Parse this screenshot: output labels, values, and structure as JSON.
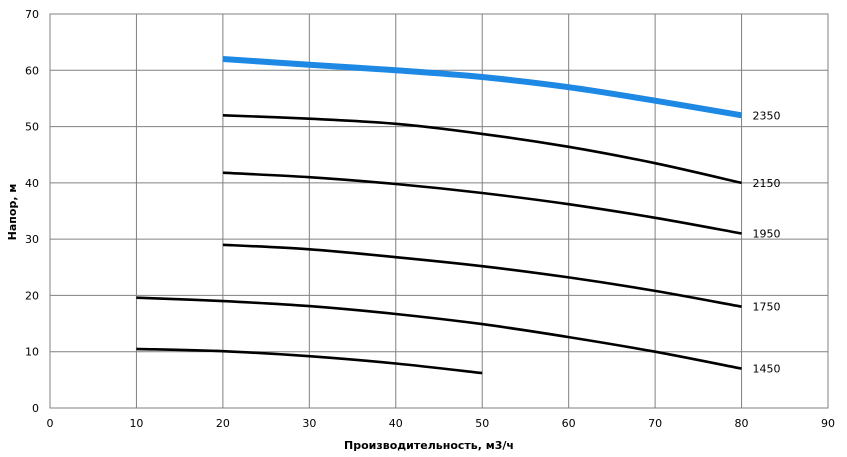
{
  "chart_data": {
    "type": "line",
    "title": "",
    "xlabel": "Производительность,  м3/ч",
    "ylabel": "Напор, м",
    "xlim": [
      0,
      90
    ],
    "ylim": [
      0,
      70
    ],
    "xticks": [
      0,
      10,
      20,
      30,
      40,
      50,
      60,
      70,
      80,
      90
    ],
    "yticks": [
      0,
      10,
      20,
      30,
      40,
      50,
      60,
      70
    ],
    "grid": true,
    "legend": "none",
    "series": [
      {
        "name": "2350",
        "color": "#1e88e5",
        "x": [
          20,
          30,
          40,
          50,
          60,
          70,
          80
        ],
        "y": [
          62,
          61,
          60,
          58.8,
          57,
          54.6,
          52
        ]
      },
      {
        "name": "2150",
        "color": "#000000",
        "x": [
          20,
          30,
          40,
          50,
          60,
          70,
          80
        ],
        "y": [
          52,
          51.4,
          50.5,
          48.7,
          46.4,
          43.5,
          40
        ]
      },
      {
        "name": "1950",
        "color": "#000000",
        "x": [
          20,
          30,
          40,
          50,
          60,
          70,
          80
        ],
        "y": [
          41.8,
          41,
          39.8,
          38.2,
          36.2,
          33.8,
          31
        ]
      },
      {
        "name": "1750",
        "color": "#000000",
        "x": [
          20,
          30,
          40,
          50,
          60,
          70,
          80
        ],
        "y": [
          29,
          28.2,
          26.8,
          25.2,
          23.2,
          20.8,
          18
        ]
      },
      {
        "name": "1450",
        "color": "#000000",
        "x": [
          10,
          20,
          30,
          40,
          50,
          60,
          70,
          80
        ],
        "y": [
          19.6,
          19,
          18.1,
          16.7,
          14.9,
          12.6,
          10,
          7
        ]
      },
      {
        "name": "",
        "color": "#000000",
        "x": [
          10,
          20,
          30,
          40,
          50
        ],
        "y": [
          10.5,
          10.1,
          9.2,
          7.9,
          6.2
        ]
      }
    ]
  }
}
